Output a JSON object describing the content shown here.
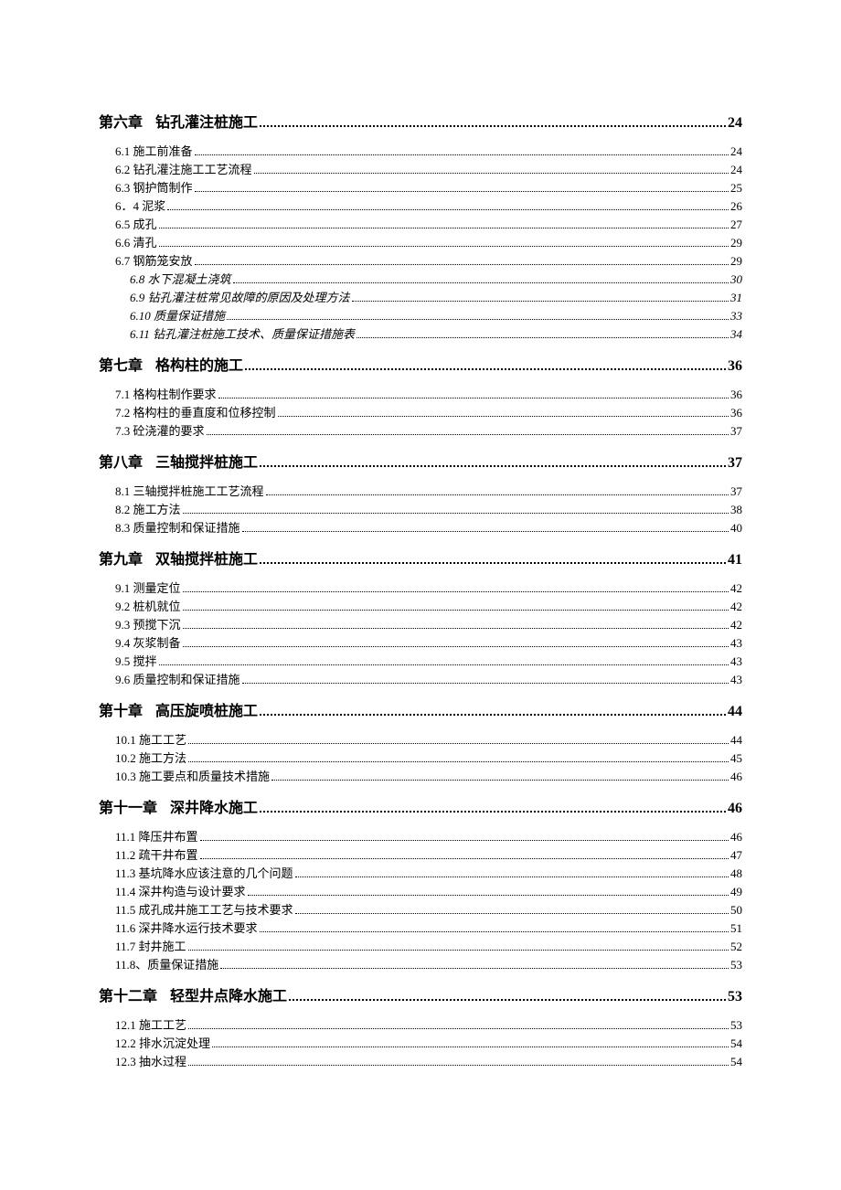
{
  "text_color": "#000000",
  "background_color": "#ffffff",
  "chapter_fontsize": 16,
  "sub_fontsize": 13,
  "chapters": [
    {
      "heading_prefix": "第六章",
      "heading_title": "钻孔灌注桩施工",
      "heading_page": "24",
      "subs": [
        {
          "label": "6.1 施工前准备",
          "page": "24",
          "italic": false
        },
        {
          "label": "6.2 钻孔灌注施工工艺流程",
          "page": "24",
          "italic": false
        },
        {
          "label": "6.3 钢护筒制作",
          "page": "25",
          "italic": false
        },
        {
          "label": "6．4 泥浆",
          "page": "26",
          "italic": false
        },
        {
          "label": "6.5 成孔",
          "page": "27",
          "italic": false
        },
        {
          "label": "6.6 清孔",
          "page": "29",
          "italic": false
        },
        {
          "label": "6.7 钢筋笼安放",
          "page": "29",
          "italic": false
        },
        {
          "label": "6.8  水下混凝土浇筑",
          "page": "30",
          "italic": true
        },
        {
          "label": "6.9  钻孔灌注桩常见故障的原因及处理方法",
          "page": "31",
          "italic": true
        },
        {
          "label": "6.10  质量保证措施",
          "page": "33",
          "italic": true
        },
        {
          "label": "6.11    钻孔灌注桩施工技术、质量保证措施表",
          "page": "34",
          "italic": true
        }
      ]
    },
    {
      "heading_prefix": "第七章",
      "heading_title": "格构柱的施工",
      "heading_page": "36",
      "subs": [
        {
          "label": "7.1 格构柱制作要求",
          "page": "36",
          "italic": false
        },
        {
          "label": "7.2 格构柱的垂直度和位移控制",
          "page": "36",
          "italic": false
        },
        {
          "label": "7.3 砼浇灌的要求",
          "page": "37",
          "italic": false
        }
      ]
    },
    {
      "heading_prefix": "第八章",
      "heading_title": "三轴搅拌桩施工",
      "heading_page": "37",
      "subs": [
        {
          "label": "8.1 三轴搅拌桩施工工艺流程",
          "page": "37",
          "italic": false
        },
        {
          "label": "8.2 施工方法",
          "page": "38",
          "italic": false
        },
        {
          "label": "8.3 质量控制和保证措施",
          "page": "40",
          "italic": false
        }
      ]
    },
    {
      "heading_prefix": "第九章",
      "heading_title": "双轴搅拌桩施工",
      "heading_page": "41",
      "subs": [
        {
          "label": "9.1 测量定位",
          "page": "42",
          "italic": false
        },
        {
          "label": "9.2 桩机就位",
          "page": "42",
          "italic": false
        },
        {
          "label": "9.3 预搅下沉",
          "page": "42",
          "italic": false
        },
        {
          "label": "9.4 灰浆制备",
          "page": "43",
          "italic": false
        },
        {
          "label": "9.5 搅拌",
          "page": "43",
          "italic": false
        },
        {
          "label": "9.6 质量控制和保证措施",
          "page": "43",
          "italic": false
        }
      ]
    },
    {
      "heading_prefix": "第十章",
      "heading_title": "高压旋喷桩施工",
      "heading_page": "44",
      "subs": [
        {
          "label": "10.1 施工工艺",
          "page": "44",
          "italic": false
        },
        {
          "label": "10.2 施工方法",
          "page": "45",
          "italic": false
        },
        {
          "label": "10.3 施工要点和质量技术措施",
          "page": "46",
          "italic": false
        }
      ]
    },
    {
      "heading_prefix": "第十一章",
      "heading_title": "深井降水施工",
      "heading_page": "46",
      "subs": [
        {
          "label": "11.1 降压井布置",
          "page": "46",
          "italic": false
        },
        {
          "label": "11.2 疏干井布置",
          "page": "47",
          "italic": false
        },
        {
          "label": "11.3 基坑降水应该注意的几个问题",
          "page": "48",
          "italic": false
        },
        {
          "label": "11.4 深井构造与设计要求",
          "page": "49",
          "italic": false
        },
        {
          "label": "11.5 成孔成井施工工艺与技术要求",
          "page": "50",
          "italic": false
        },
        {
          "label": "11.6 深井降水运行技术要求",
          "page": "51",
          "italic": false
        },
        {
          "label": "11.7 封井施工",
          "page": "52",
          "italic": false
        },
        {
          "label": "11.8、质量保证措施",
          "page": "53",
          "italic": false
        }
      ]
    },
    {
      "heading_prefix": "第十二章",
      "heading_title": "轻型井点降水施工",
      "heading_page": "53",
      "subs": [
        {
          "label": "12.1 施工工艺",
          "page": "53",
          "italic": false
        },
        {
          "label": "12.2 排水沉淀处理",
          "page": "54",
          "italic": false
        },
        {
          "label": "12.3 抽水过程",
          "page": "54",
          "italic": false
        }
      ]
    }
  ]
}
